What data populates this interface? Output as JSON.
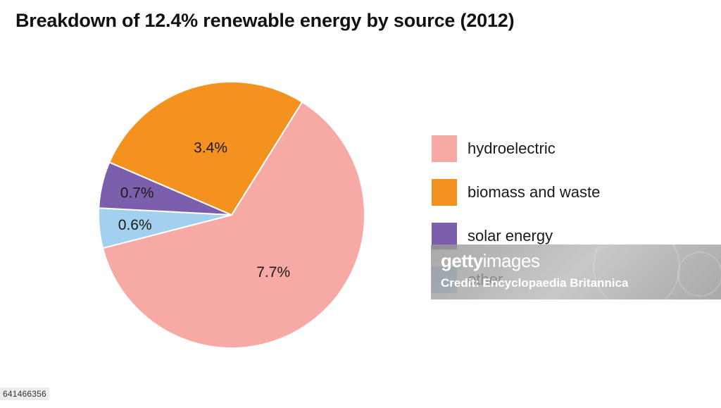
{
  "chart_data": {
    "type": "pie",
    "title": "Breakdown of 12.4% renewable energy by source (2012)",
    "slices": [
      {
        "name": "hydroelectric",
        "value": 7.7,
        "label": "7.7%",
        "color": "#f7a9a6"
      },
      {
        "name": "other",
        "value": 0.6,
        "label": "0.6%",
        "color": "#a3d0ee"
      },
      {
        "name": "solar energy",
        "value": 0.7,
        "label": "0.7%",
        "color": "#7b5fad"
      },
      {
        "name": "biomass and waste",
        "value": 3.4,
        "label": "3.4%",
        "color": "#f4921f"
      }
    ],
    "legend": {
      "placement": "right",
      "entries": [
        {
          "label": "hydroelectric",
          "color": "#f7a9a6"
        },
        {
          "label": "biomass and waste",
          "color": "#f4921f"
        },
        {
          "label": "solar energy",
          "color": "#7b5fad"
        },
        {
          "label": "other",
          "color": "#a3d0ee"
        }
      ]
    }
  },
  "watermark": {
    "brand_bold": "getty",
    "brand_light": "images",
    "credit": "Credit: Encyclopaedia Britannica"
  },
  "image_id": "641466356"
}
